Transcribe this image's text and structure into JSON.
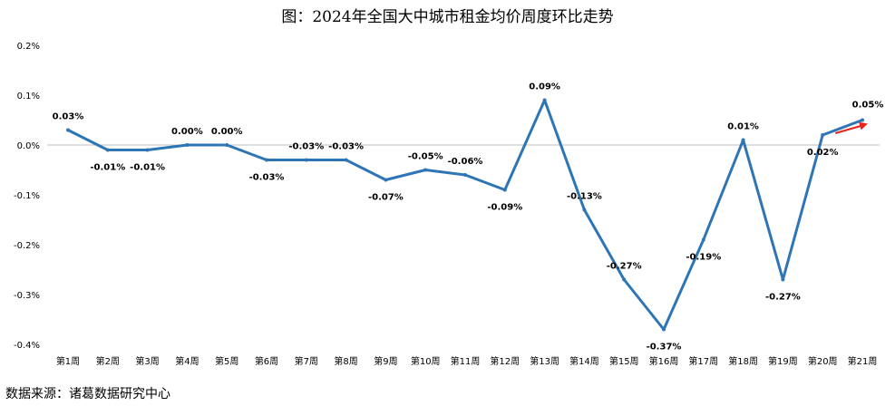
{
  "chart_data": {
    "type": "line",
    "title": "图：2024年全国大中城市租金均价周度环比走势",
    "categories": [
      "第1周",
      "第2周",
      "第3周",
      "第4周",
      "第5周",
      "第6周",
      "第7周",
      "第8周",
      "第9周",
      "第10周",
      "第11周",
      "第12周",
      "第13周",
      "第14周",
      "第15周",
      "第16周",
      "第17周",
      "第18周",
      "第19周",
      "第20周",
      "第21周"
    ],
    "values": [
      0.03,
      -0.01,
      -0.01,
      0.0,
      0.0,
      -0.03,
      -0.03,
      -0.03,
      -0.07,
      -0.05,
      -0.06,
      -0.09,
      0.09,
      -0.13,
      -0.27,
      -0.37,
      -0.19,
      0.01,
      -0.27,
      0.02,
      0.05
    ],
    "data_labels": [
      "0.03%",
      "-0.01%",
      "-0.01%",
      "0.00%",
      "0.00%",
      "-0.03%",
      "-0.03%",
      "-0.03%",
      "-0.07%",
      "-0.05%",
      "-0.06%",
      "-0.09%",
      "0.09%",
      "-0.13%",
      "-0.27%",
      "-0.37%",
      "-0.19%",
      "0.01%",
      "-0.27%",
      "0.02%",
      "0.05%"
    ],
    "y_ticks": [
      0.2,
      0.1,
      0.0,
      -0.1,
      -0.2,
      -0.3,
      -0.4
    ],
    "y_tick_labels": [
      "0.2%",
      "0.1%",
      "0.0%",
      "-0.1%",
      "-0.2%",
      "-0.3%",
      "-0.4%"
    ],
    "ylim": [
      -0.4,
      0.2
    ],
    "xlabel": "",
    "ylabel": "",
    "grid": false,
    "zero_line": true,
    "legend": "none",
    "annotations": [
      "red-arrow-up-right"
    ]
  },
  "source_note": "数据来源：诸葛数据研究中心",
  "colors": {
    "line": "#2E75B6",
    "arrow": "#E8231A",
    "zero_line": "#BFBFBF"
  }
}
